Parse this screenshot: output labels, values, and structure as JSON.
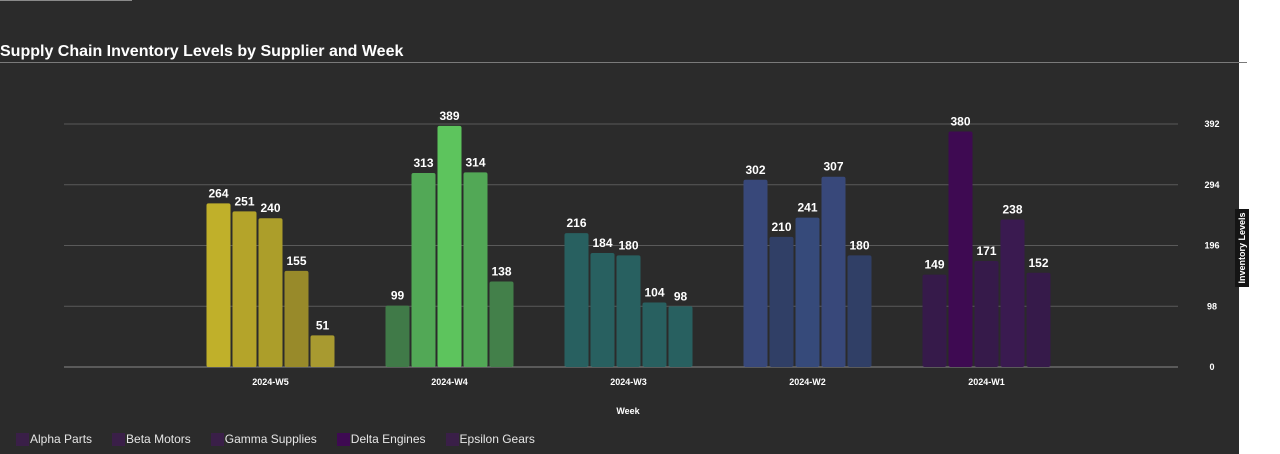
{
  "chart_data": {
    "type": "bar",
    "title": "Supply Chain Inventory Levels by Supplier and Week",
    "xlabel": "Week",
    "ylabel": "Inventory Levels",
    "categories": [
      "2024-W5",
      "2024-W4",
      "2024-W3",
      "2024-W2",
      "2024-W1"
    ],
    "series": [
      {
        "name": "Alpha Parts",
        "values": [
          264,
          99,
          216,
          302,
          149
        ]
      },
      {
        "name": "Beta Motors",
        "values": [
          251,
          313,
          184,
          210,
          380
        ]
      },
      {
        "name": "Gamma Supplies",
        "values": [
          240,
          389,
          180,
          241,
          171
        ]
      },
      {
        "name": "Delta Engines",
        "values": [
          155,
          314,
          104,
          307,
          238
        ]
      },
      {
        "name": "Epsilon Gears",
        "values": [
          51,
          138,
          98,
          180,
          152
        ]
      }
    ],
    "y_ticks": [
      "0",
      "98",
      "196",
      "294",
      "392"
    ],
    "ylim": [
      0,
      392
    ],
    "y_axis_side": "right",
    "grid": true,
    "legend_position": "bottom-left",
    "bar_colors": [
      [
        "#c0b02a",
        "#b4a42a",
        "#ac9e2a",
        "#988a2a",
        "#a89a30"
      ],
      [
        "#407a48",
        "#52a856",
        "#5dc45d",
        "#52a856",
        "#43804a"
      ],
      [
        "#286060",
        "#286060",
        "#286060",
        "#286060",
        "#286060"
      ],
      [
        "#38487a",
        "#303f66",
        "#364a7a",
        "#38487a",
        "#303f66"
      ],
      [
        "#361a4a",
        "#3e0a52",
        "#361a4a",
        "#3a1a50",
        "#361a4a"
      ]
    ],
    "legend_colors": [
      "#3a1f48",
      "#3a1f48",
      "#3a1f48",
      "#3e0a52",
      "#3a1f48"
    ]
  }
}
